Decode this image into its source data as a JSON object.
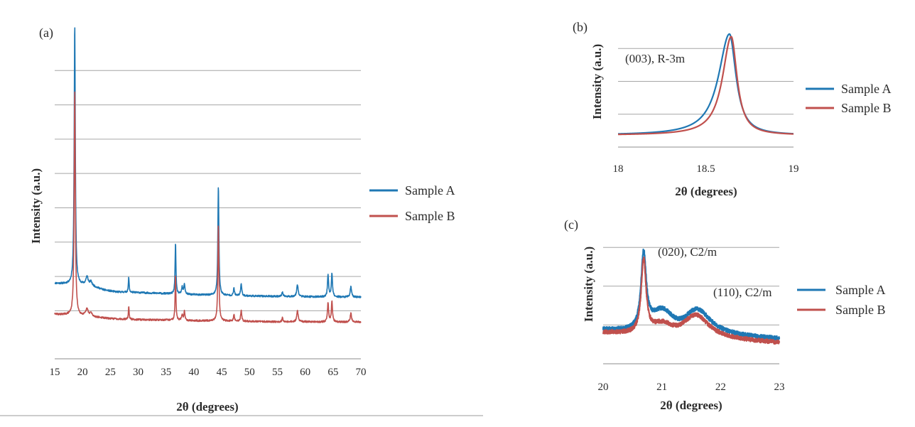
{
  "colors": {
    "sample_a": "#1f78b4",
    "sample_b": "#c0504d",
    "grid": "#a6a6a6",
    "axis": "#8c8c8c",
    "text": "#2b2b2b"
  },
  "chart_data": [
    {
      "panel_label": "(a)",
      "type": "line",
      "xlabel": "2θ (degrees)",
      "ylabel": "Intensity (a.u.)",
      "xlim": [
        15,
        70
      ],
      "ylim": [
        0,
        100
      ],
      "xticks": [
        15,
        20,
        25,
        30,
        35,
        40,
        45,
        50,
        55,
        60,
        65,
        70
      ],
      "y_gridlines": [
        14,
        24,
        34,
        44,
        54,
        64,
        74,
        84
      ],
      "y_tick_labels_shown": false,
      "grid": true,
      "legend": [
        "Sample A",
        "Sample B"
      ],
      "legend_position": "right",
      "series": [
        {
          "name": "Sample A",
          "baseline": [
            [
              15,
              22
            ],
            [
              20,
              21.5
            ],
            [
              22,
              21
            ],
            [
              24,
              20
            ],
            [
              26,
              19.5
            ],
            [
              30,
              19.3
            ],
            [
              35,
              19.0
            ],
            [
              40,
              18.7
            ],
            [
              45,
              18.5
            ],
            [
              50,
              18.3
            ],
            [
              55,
              18.2
            ],
            [
              60,
              18.1
            ],
            [
              65,
              18.0
            ],
            [
              70,
              18.0
            ]
          ],
          "peaks": [
            {
              "x": 18.6,
              "h": 76,
              "w": 0.12
            },
            {
              "x": 20.8,
              "h": 2.5,
              "w": 0.25
            },
            {
              "x": 21.5,
              "h": 1.2,
              "w": 0.25
            },
            {
              "x": 28.3,
              "h": 4.5,
              "w": 0.08
            },
            {
              "x": 36.7,
              "h": 15,
              "w": 0.09
            },
            {
              "x": 37.9,
              "h": 2.0,
              "w": 0.12
            },
            {
              "x": 38.3,
              "h": 3.0,
              "w": 0.12
            },
            {
              "x": 44.4,
              "h": 32,
              "w": 0.11
            },
            {
              "x": 47.2,
              "h": 2.3,
              "w": 0.1
            },
            {
              "x": 48.5,
              "h": 3.5,
              "w": 0.12
            },
            {
              "x": 55.9,
              "h": 1.4,
              "w": 0.1
            },
            {
              "x": 58.6,
              "h": 3.6,
              "w": 0.15
            },
            {
              "x": 64.1,
              "h": 6.5,
              "w": 0.12
            },
            {
              "x": 64.8,
              "h": 6.9,
              "w": 0.12
            },
            {
              "x": 68.2,
              "h": 3.0,
              "w": 0.14
            }
          ]
        },
        {
          "name": "Sample B",
          "baseline": [
            [
              15,
              13.0
            ],
            [
              20,
              12.5
            ],
            [
              22,
              12.2
            ],
            [
              25,
              11.7
            ],
            [
              30,
              11.4
            ],
            [
              35,
              11.3
            ],
            [
              40,
              11.1
            ],
            [
              45,
              11.0
            ],
            [
              50,
              10.9
            ],
            [
              55,
              10.8
            ],
            [
              60,
              10.8
            ],
            [
              65,
              10.7
            ],
            [
              70,
              10.7
            ]
          ],
          "peaks": [
            {
              "x": 18.6,
              "h": 66,
              "w": 0.12
            },
            {
              "x": 20.8,
              "h": 2.0,
              "w": 0.25
            },
            {
              "x": 21.5,
              "h": 1.0,
              "w": 0.25
            },
            {
              "x": 28.3,
              "h": 3.8,
              "w": 0.08
            },
            {
              "x": 36.7,
              "h": 13,
              "w": 0.09
            },
            {
              "x": 37.9,
              "h": 1.6,
              "w": 0.12
            },
            {
              "x": 38.3,
              "h": 2.6,
              "w": 0.12
            },
            {
              "x": 44.4,
              "h": 28,
              "w": 0.11
            },
            {
              "x": 47.2,
              "h": 1.9,
              "w": 0.1
            },
            {
              "x": 48.5,
              "h": 3.0,
              "w": 0.12
            },
            {
              "x": 55.9,
              "h": 1.2,
              "w": 0.1
            },
            {
              "x": 58.6,
              "h": 3.2,
              "w": 0.15
            },
            {
              "x": 64.1,
              "h": 5.6,
              "w": 0.12
            },
            {
              "x": 64.8,
              "h": 6.0,
              "w": 0.12
            },
            {
              "x": 68.2,
              "h": 2.6,
              "w": 0.14
            }
          ]
        }
      ]
    },
    {
      "panel_label": "(b)",
      "type": "line",
      "xlabel": "2θ (degrees)",
      "ylabel": "Intensity (a.u.)",
      "annotation": "(003), R-3m",
      "xlim": [
        18,
        19
      ],
      "ylim": [
        0,
        100
      ],
      "xticks": [
        18,
        18.5,
        19
      ],
      "y_gridlines": [
        25,
        50,
        75
      ],
      "y_tick_labels_shown": false,
      "grid": true,
      "legend": [
        "Sample A",
        "Sample B"
      ],
      "legend_position": "right",
      "series": [
        {
          "name": "Sample A",
          "peak_x": 18.635,
          "peak_height": 77,
          "baseline": 9,
          "width_left": 0.075,
          "width_right": 0.045
        },
        {
          "name": "Sample B",
          "peak_x": 18.645,
          "peak_height": 75,
          "baseline": 9,
          "width_left": 0.06,
          "width_right": 0.04
        }
      ]
    },
    {
      "panel_label": "(c)",
      "type": "line",
      "xlabel": "2θ (degrees)",
      "ylabel": "Intensity (a.u.)",
      "annotations": [
        "(020), C2/m",
        "(110), C2/m"
      ],
      "xlim": [
        20,
        23
      ],
      "ylim": [
        0,
        100
      ],
      "xticks": [
        20,
        21,
        22,
        23
      ],
      "y_gridlines": [
        30,
        60,
        90
      ],
      "y_tick_labels_shown": false,
      "grid": true,
      "legend": [
        "Sample A",
        "Sample B"
      ],
      "legend_position": "right",
      "series": [
        {
          "name": "Sample A",
          "baseline_start": 26,
          "baseline_end": 19,
          "peaks": [
            {
              "x": 20.69,
              "h": 60,
              "w": 0.055
            },
            {
              "x": 21.6,
              "h": 20,
              "w": 0.28
            }
          ],
          "shoulder": {
            "x": 21.0,
            "h": 14,
            "w": 0.22
          }
        },
        {
          "name": "Sample B",
          "baseline_start": 24,
          "baseline_end": 16,
          "peaks": [
            {
              "x": 20.69,
              "h": 58,
              "w": 0.05
            },
            {
              "x": 21.58,
              "h": 18,
              "w": 0.27
            }
          ],
          "shoulder": {
            "x": 21.0,
            "h": 7,
            "w": 0.2
          }
        }
      ]
    }
  ]
}
